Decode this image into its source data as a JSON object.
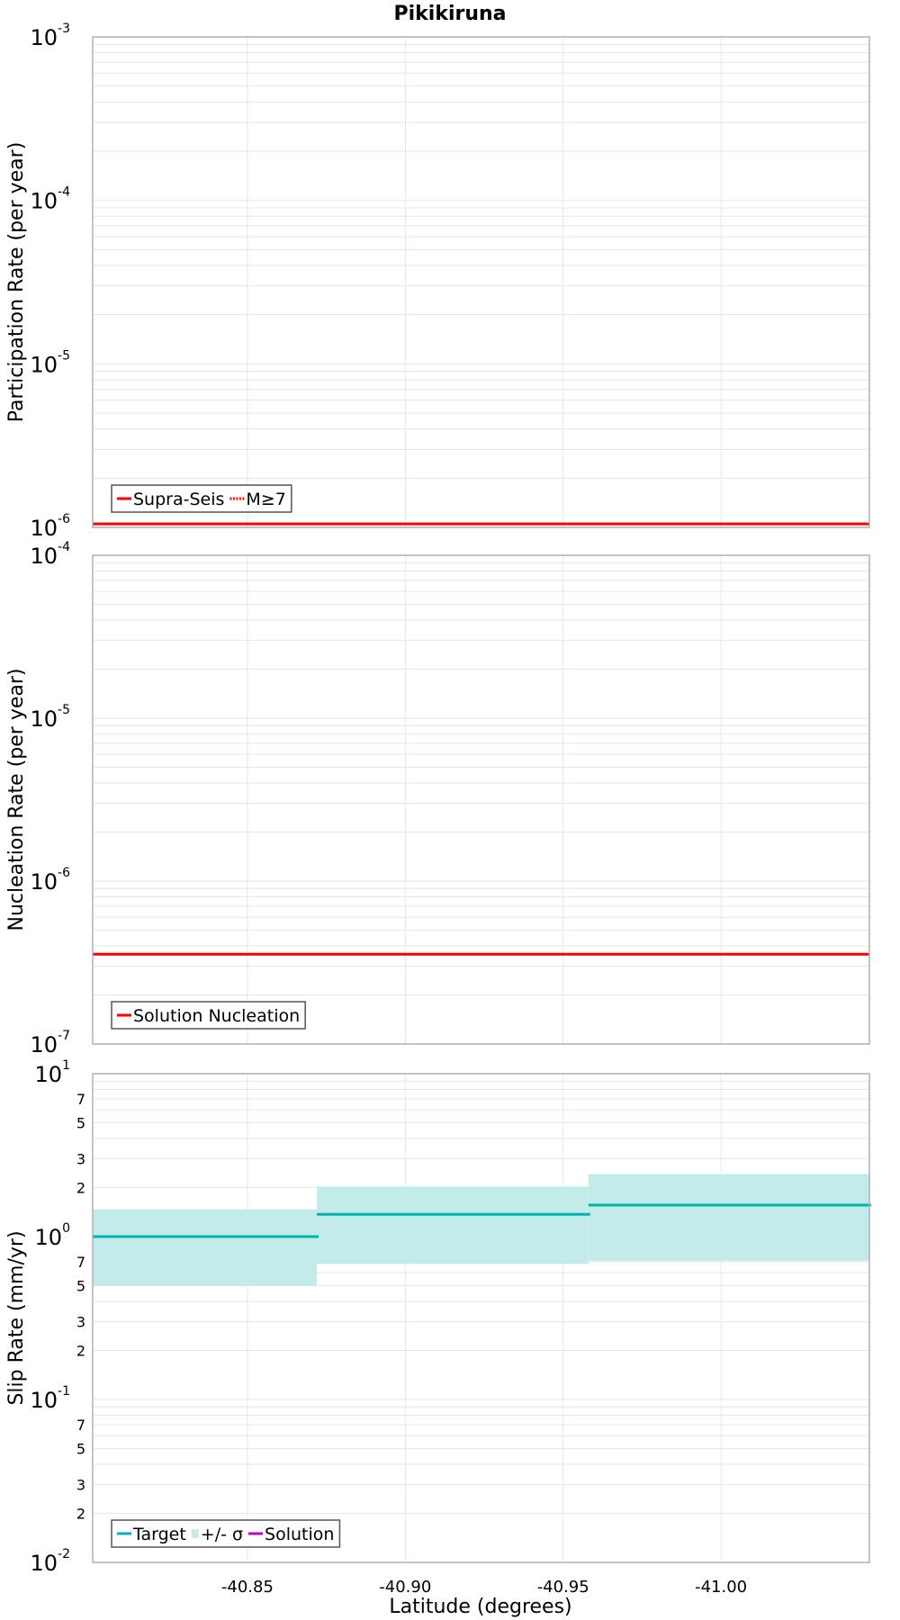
{
  "chart_data": [
    {
      "type": "line",
      "title": "Pikikiruna",
      "xlabel": "",
      "ylabel": "Participation Rate (per year)",
      "yscale": "log",
      "ylim": [
        1e-06,
        0.001
      ],
      "xlim": [
        -40.801,
        -41.047
      ],
      "y_tick_labels": [
        {
          "base": "10",
          "exp": "-6",
          "v": 1e-06
        },
        {
          "base": "10",
          "exp": "-5",
          "v": 1e-05
        },
        {
          "base": "10",
          "exp": "-4",
          "v": 0.0001
        },
        {
          "base": "10",
          "exp": "-3",
          "v": 0.001
        }
      ],
      "legend": [
        {
          "label": "Supra-Seis",
          "style": "solid",
          "color": "#ff0000"
        },
        {
          "label": "M≥7",
          "style": "dotted",
          "color": "#ff0000"
        }
      ],
      "legend_position": "bottom-left",
      "series": [
        {
          "name": "Supra-Seis",
          "color": "#ff0000",
          "x": [
            -40.801,
            -41.047
          ],
          "y": [
            1.05e-06,
            1.05e-06
          ]
        }
      ]
    },
    {
      "type": "line",
      "xlabel": "",
      "ylabel": "Nucleation Rate (per year)",
      "yscale": "log",
      "ylim": [
        1e-07,
        0.0001
      ],
      "xlim": [
        -40.801,
        -41.047
      ],
      "y_tick_labels": [
        {
          "base": "10",
          "exp": "-7",
          "v": 1e-07
        },
        {
          "base": "10",
          "exp": "-6",
          "v": 1e-06
        },
        {
          "base": "10",
          "exp": "-5",
          "v": 1e-05
        },
        {
          "base": "10",
          "exp": "-4",
          "v": 0.0001
        }
      ],
      "legend": [
        {
          "label": "Solution Nucleation",
          "style": "solid",
          "color": "#ff0000"
        }
      ],
      "legend_position": "bottom-left",
      "series": [
        {
          "name": "Solution Nucleation",
          "color": "#ff0000",
          "x": [
            -40.801,
            -41.047
          ],
          "y": [
            3.56e-07,
            3.56e-07
          ]
        }
      ]
    },
    {
      "type": "line",
      "xlabel": "Latitude (degrees)",
      "ylabel": "Slip Rate (mm/yr)",
      "yscale": "log",
      "ylim": [
        0.01,
        10
      ],
      "xlim": [
        -40.801,
        -41.047
      ],
      "x_tick_labels": [
        {
          "label": "-40.85",
          "v": -40.85
        },
        {
          "label": "-40.90",
          "v": -40.9
        },
        {
          "label": "-40.95",
          "v": -40.95
        },
        {
          "label": "-41.00",
          "v": -41.0
        }
      ],
      "y_tick_labels": [
        {
          "base": "10",
          "exp": "-2",
          "v": 0.01
        },
        {
          "base": "10",
          "exp": "-1",
          "v": 0.1
        },
        {
          "base": "10",
          "exp": "0",
          "v": 1
        },
        {
          "base": "10",
          "exp": "1",
          "v": 10
        }
      ],
      "minor_tick_labels": [
        "2",
        "3",
        "5",
        "7"
      ],
      "legend": [
        {
          "label": "Target",
          "style": "solid",
          "color": "#00b4b4"
        },
        {
          "label": "+/- σ",
          "style": "fill",
          "color": "#c2ebea"
        },
        {
          "label": "Solution",
          "style": "solid",
          "color": "#c000c0"
        }
      ],
      "legend_position": "bottom-left",
      "segments": [
        {
          "x": [
            -40.801,
            -40.872
          ],
          "target": 1.0,
          "lower": 0.5,
          "upper": 1.47
        },
        {
          "x": [
            -40.872,
            -40.958
          ],
          "target": 1.37,
          "lower": 0.68,
          "upper": 2.03
        },
        {
          "x": [
            -40.958,
            -41.047
          ],
          "target": 1.56,
          "lower": 0.71,
          "upper": 2.42
        }
      ]
    }
  ],
  "colors": {
    "grid": "#e6e6e6",
    "frame": "#b0b0b0",
    "target": "#00b4b4",
    "band": "#c2ebea",
    "solution": "#c000c0",
    "red": "#ff0000"
  }
}
